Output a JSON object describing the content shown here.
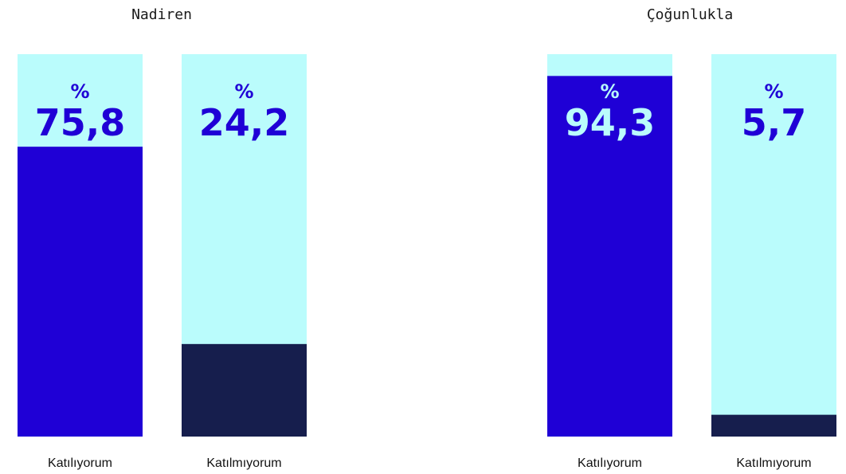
{
  "chart_data": {
    "type": "bar",
    "subtype": "100%-stacked-column",
    "ylim": [
      0,
      100
    ],
    "groups": [
      {
        "title": "Nadiren",
        "bars": [
          {
            "category": "Katılıyorum",
            "value": 75.8,
            "label_pct": "%",
            "label_value": "75,8"
          },
          {
            "category": "Katılmıyorum",
            "value": 24.2,
            "label_pct": "%",
            "label_value": "24,2"
          }
        ]
      },
      {
        "title": "Çoğunlukla",
        "bars": [
          {
            "category": "Katılıyorum",
            "value": 94.3,
            "label_pct": "%",
            "label_value": "94,3"
          },
          {
            "category": "Katılmıyorum",
            "value": 5.7,
            "label_pct": "%",
            "label_value": "5,7"
          }
        ]
      }
    ]
  },
  "colors": {
    "track": "#bafcfc",
    "agree_fill": "#1f00d6",
    "disagree_fill": "#161e4d",
    "agree_label_on_fill": "#bafcfc",
    "label_on_track": "#1f00d6"
  }
}
